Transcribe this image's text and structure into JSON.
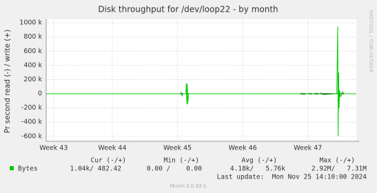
{
  "chart_data": {
    "type": "line",
    "title": "Disk throughput for /dev/loop22 - by month",
    "y_label": "Pr second read (-) / write (+)",
    "side_label": "RRDTOOL / TOBI OETIKER",
    "x": [
      0,
      14.4,
      14.5,
      14.6,
      14.7,
      15.0,
      15.05,
      15.1,
      15.15,
      15.2,
      15.3,
      27.2,
      27.5,
      27.6,
      28.3,
      28.4,
      29.0,
      29.1,
      29.6,
      29.7,
      31.2,
      31.3,
      31.35,
      31.4,
      31.45,
      31.5,
      31.6,
      31.8,
      32.0,
      33.3
    ],
    "series": [
      {
        "name": "Bytes",
        "color": "#00cc00",
        "values": [
          0,
          0,
          20000,
          -30000,
          0,
          0,
          150000,
          -150000,
          140000,
          -140000,
          0,
          0,
          10000,
          -10000,
          8000,
          -8000,
          10000,
          -10000,
          12000,
          -12000,
          0,
          950000,
          -600000,
          300000,
          -200000,
          50000,
          -50000,
          30000,
          0,
          0
        ]
      }
    ],
    "xlim": [
      0,
      33.3
    ],
    "xticks": [
      {
        "value": 0.8,
        "label": "Week 43"
      },
      {
        "value": 7.1,
        "label": "Week 44"
      },
      {
        "value": 14.1,
        "label": "Week 45"
      },
      {
        "value": 21.1,
        "label": "Week 46"
      },
      {
        "value": 28.1,
        "label": "Week 47"
      }
    ],
    "ylim": [
      -670000,
      1050000
    ],
    "yticks": [
      {
        "value": -600000,
        "label": "-600 k"
      },
      {
        "value": -400000,
        "label": "-400 k"
      },
      {
        "value": -200000,
        "label": "-200 k"
      },
      0,
      {
        "value": 200000,
        "label": "200 k"
      },
      {
        "value": 400000,
        "label": "400 k"
      },
      {
        "value": 600000,
        "label": "600 k"
      },
      {
        "value": 800000,
        "label": "800 k"
      },
      {
        "value": 1000000,
        "label": "1000 k"
      }
    ],
    "grid": true
  },
  "legend_table": {
    "headers": [
      "Cur (-/+)",
      "Min (-/+)",
      "Avg (-/+)",
      "Max (-/+)"
    ],
    "row": {
      "name": "Bytes",
      "cells": [
        "1.04k/ 482.42",
        "0.00 /    0.00",
        "4.18k/   5.76k",
        "2.92M/   7.31M"
      ]
    },
    "last_update": "Last update:  Mon Nov 25 14:10:00 2024",
    "footer": "Munin 2.0.33-1"
  }
}
